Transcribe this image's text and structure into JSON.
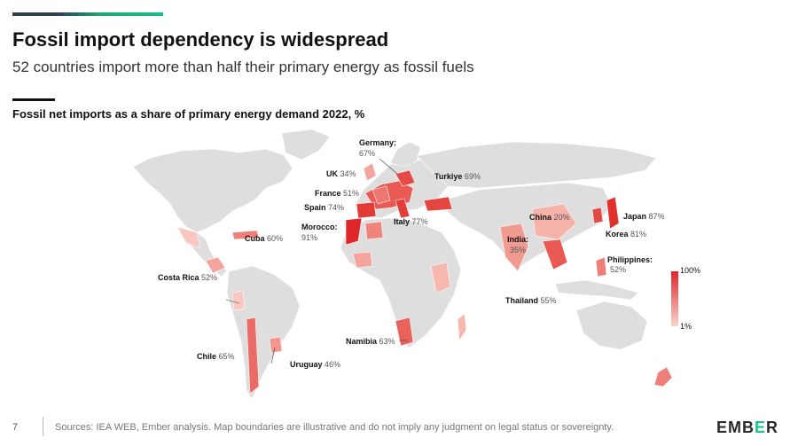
{
  "header": {
    "title": "Fossil import dependency is widespread",
    "subtitle": "52 countries import more than half their primary energy as fossil fuels",
    "map_title": "Fossil net imports as a share of primary energy demand 2022, %"
  },
  "colors": {
    "brand_dark": "#2d3e50",
    "brand_green": "#18c08a",
    "land": "#dedede",
    "high": "#e0262b",
    "low": "#f9d5cf"
  },
  "legend": {
    "max_label": "100%",
    "min_label": "1%"
  },
  "countries": [
    {
      "key": "germany",
      "name": "Germany:",
      "value": "67%",
      "share": 67
    },
    {
      "key": "uk",
      "name": "UK",
      "value": "34%",
      "share": 34
    },
    {
      "key": "turkiye",
      "name": "Turkiye",
      "value": "69%",
      "share": 69
    },
    {
      "key": "france",
      "name": "France",
      "value": "51%",
      "share": 51
    },
    {
      "key": "spain",
      "name": "Spain",
      "value": "74%",
      "share": 74
    },
    {
      "key": "italy",
      "name": "Italy",
      "value": "77%",
      "share": 77
    },
    {
      "key": "morocco",
      "name": "Morocco:",
      "value": "91%",
      "share": 91
    },
    {
      "key": "cuba",
      "name": "Cuba",
      "value": "60%",
      "share": 60
    },
    {
      "key": "china",
      "name": "China",
      "value": "20%",
      "share": 20
    },
    {
      "key": "japan",
      "name": "Japan",
      "value": "87%",
      "share": 87
    },
    {
      "key": "korea",
      "name": "Korea",
      "value": "81%",
      "share": 81
    },
    {
      "key": "india",
      "name": "India:",
      "value": "35%",
      "share": 35
    },
    {
      "key": "philippines",
      "name": "Philippines:",
      "value": "52%",
      "share": 52
    },
    {
      "key": "costarica",
      "name": "Costa Rica",
      "value": "52%",
      "share": 52
    },
    {
      "key": "thailand",
      "name": "Thailand",
      "value": "55%",
      "share": 55
    },
    {
      "key": "namibia",
      "name": "Namibia",
      "value": "63%",
      "share": 63
    },
    {
      "key": "chile",
      "name": "Chile",
      "value": "65%",
      "share": 65
    },
    {
      "key": "uruguay",
      "name": "Uruguay",
      "value": "46%",
      "share": 46
    }
  ],
  "footer": {
    "page_number": "7",
    "source": "Sources: IEA WEB, Ember analysis. Map boundaries are illustrative and do not imply any judgment on legal status or sovereignty.",
    "logo_pre": "EMB",
    "logo_e": "E",
    "logo_post": "R"
  }
}
